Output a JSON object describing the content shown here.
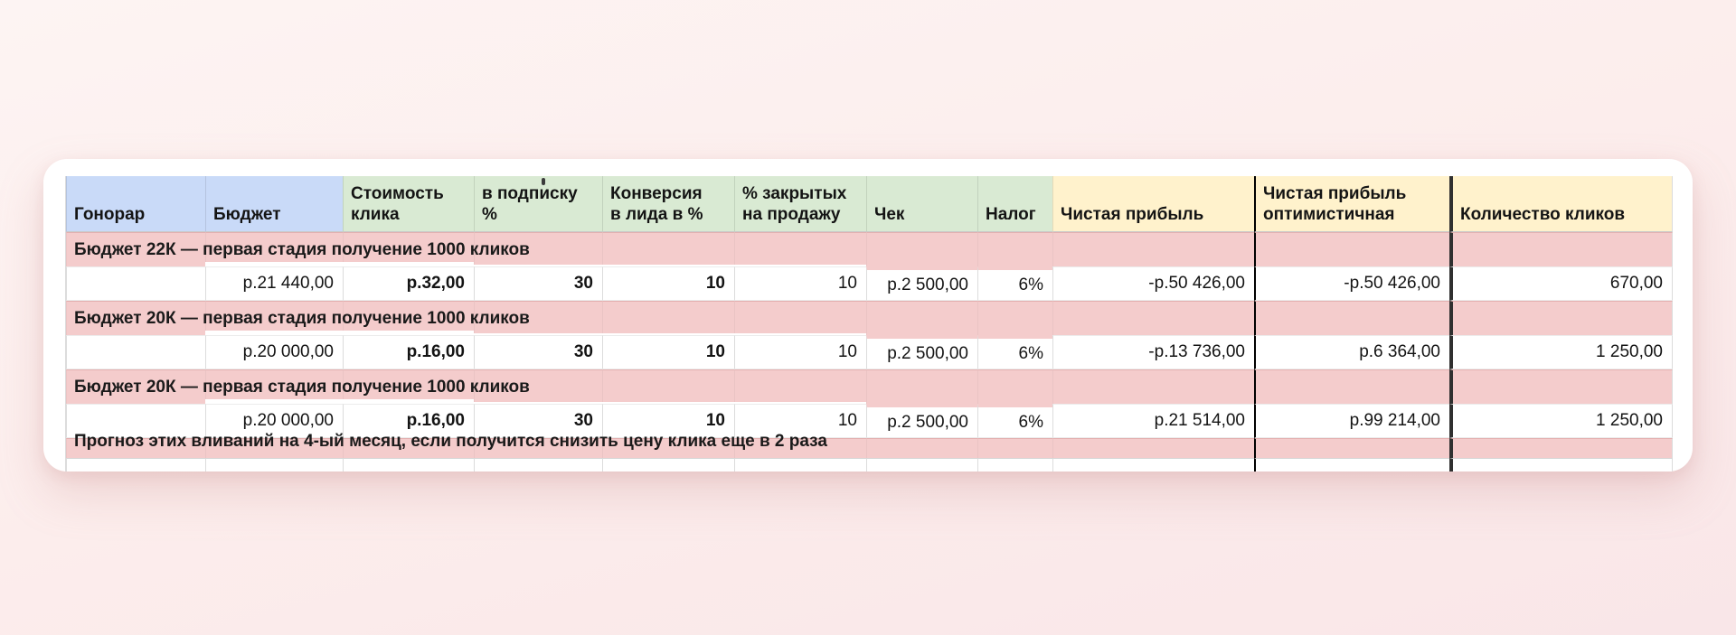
{
  "colors": {
    "page_bg": "#fcedec",
    "card_bg": "#ffffff",
    "header_blue": "#c9daf8",
    "header_green": "#d9ead3",
    "header_yellow": "#fff2cc",
    "section_pink": "#f4cccc",
    "grid_line": "#dcdcdc",
    "divider_black": "#000000"
  },
  "table": {
    "headers": [
      {
        "label": "Гонорар",
        "color_key": "blue"
      },
      {
        "label": "Бюджет",
        "color_key": "blue"
      },
      {
        "label": "Стоимость\nклика",
        "color_key": "green"
      },
      {
        "label": "в подписку\n%",
        "color_key": "green"
      },
      {
        "label": "Конверсия\nв лида в %",
        "color_key": "green"
      },
      {
        "label": "% закрытых\nна продажу",
        "color_key": "green"
      },
      {
        "label": "Чек",
        "color_key": "green"
      },
      {
        "label": "Налог",
        "color_key": "green"
      },
      {
        "label": "Чистая прибыль",
        "color_key": "yellow"
      },
      {
        "label": "Чистая прибыль\nоптимистичная",
        "color_key": "yellow"
      },
      {
        "label": "Количество кликов",
        "color_key": "yellow"
      }
    ],
    "rows": [
      {
        "type": "section",
        "text": "Бюджет 22К — первая стадия получение 1000 кликов"
      },
      {
        "type": "data",
        "cells": [
          "",
          "р.21 440,00",
          "р.32,00",
          "30",
          "10",
          "10",
          "р.2 500,00",
          "6%",
          "-р.50 426,00",
          "-р.50 426,00",
          "670,00"
        ]
      },
      {
        "type": "section",
        "text": "Бюджет 20К — первая стадия получение 1000 кликов"
      },
      {
        "type": "data",
        "cells": [
          "",
          "р.20 000,00",
          "р.16,00",
          "30",
          "10",
          "10",
          "р.2 500,00",
          "6%",
          "-р.13 736,00",
          "р.6 364,00",
          "1 250,00"
        ]
      },
      {
        "type": "section",
        "text": "Бюджет 20К — первая стадия получение 1000 кликов"
      },
      {
        "type": "data",
        "cells": [
          "",
          "р.20 000,00",
          "р.16,00",
          "30",
          "10",
          "10",
          "р.2 500,00",
          "6%",
          "р.21 514,00",
          "р.99 214,00",
          "1 250,00"
        ]
      },
      {
        "type": "section",
        "text": "Прогноз этих вливаний на 4-ый месяц, если получится снизить цену клика еще в 2 раза"
      }
    ]
  }
}
